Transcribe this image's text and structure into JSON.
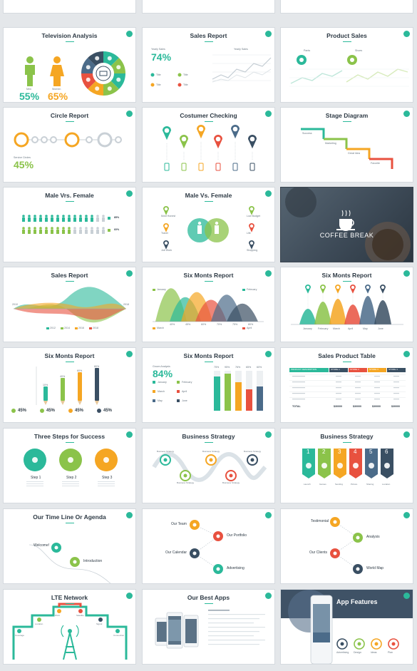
{
  "page": {
    "background": "#e4e7ea",
    "accent": "#2bb99a",
    "palette": [
      "#2bb99a",
      "#8bc34a",
      "#f5a623",
      "#e8513f",
      "#4b6b89",
      "#3a4f63"
    ]
  },
  "slides": [
    {
      "id": "top-partial-1",
      "title": ""
    },
    {
      "id": "top-partial-2",
      "title": ""
    },
    {
      "id": "top-partial-3",
      "title": ""
    },
    {
      "id": "television-analysis",
      "title": "Television Analysis",
      "labels": {
        "men": "Men",
        "women": "Women",
        "men_pct": "55%",
        "women_pct": "65%"
      }
    },
    {
      "id": "sales-report-1",
      "title": "Sales Report",
      "labels": {
        "kpi_label": "Yearly Sales",
        "kpi": "74%",
        "chart_title": "Yearly Sales",
        "items": [
          "Title",
          "Title",
          "Title",
          "Title"
        ]
      }
    },
    {
      "id": "product-sales",
      "title": "Product Sales",
      "labels": {
        "series_a": "Pants",
        "series_b": "Shoes"
      }
    },
    {
      "id": "circle-report",
      "title": "Circle Report",
      "labels": {
        "kpi_label": "Service Circles",
        "kpi": "45%"
      }
    },
    {
      "id": "costumer-checking",
      "title": "Costumer Checking"
    },
    {
      "id": "stage-diagram",
      "title": "Stage Diagram",
      "labels": {
        "stages": [
          "Success",
          "Marketing",
          "Great Idea",
          "Favorite"
        ]
      }
    },
    {
      "id": "male-vs-female-1",
      "title": "Male Vrs. Female",
      "labels": {
        "pct_1": "85%",
        "pct_2": "60%"
      }
    },
    {
      "id": "male-vs-female-2",
      "title": "Male Vs. Female",
      "labels": {
        "left": [
          "Most Honest",
          "Travel",
          "Job Work"
        ],
        "right": [
          "Low Budget",
          "Life",
          "Shopping"
        ]
      }
    },
    {
      "id": "coffee-break",
      "title": "COFFEE BREAK"
    },
    {
      "id": "sales-report-2",
      "title": "Sales Report",
      "labels": {
        "legend": [
          "2012",
          "2014",
          "2016",
          "2018"
        ],
        "left_year": "2010",
        "right_year": "2018"
      }
    },
    {
      "id": "six-monts-report-1",
      "title": "Six Monts Report",
      "labels": {
        "months": [
          "January",
          "February",
          "March",
          "April"
        ],
        "pcts": [
          "40%",
          "45%",
          "60%",
          "70%",
          "75%",
          "80%"
        ]
      }
    },
    {
      "id": "six-monts-report-2",
      "title": "Six Monts Report",
      "labels": {
        "months": [
          "January",
          "February",
          "March",
          "April",
          "May",
          "June"
        ]
      }
    },
    {
      "id": "six-monts-report-3",
      "title": "Six Monts Report",
      "labels": {
        "pcts": [
          "45%",
          "45%",
          "45%",
          "45%"
        ],
        "bar_pcts": [
          "10%",
          "40%",
          "60%",
          "80%"
        ]
      }
    },
    {
      "id": "six-monts-report-4",
      "title": "Six Monts Report",
      "labels": {
        "kpi_label": "Grown Analysis",
        "kpi": "84%",
        "months": [
          "January",
          "February",
          "March",
          "April",
          "May",
          "June"
        ],
        "bar_pcts": [
          "75%",
          "95%",
          "76%",
          "65%",
          "60%"
        ]
      }
    },
    {
      "id": "sales-product-table",
      "title": "Sales Product Table",
      "labels": {
        "head": [
          "PRODUCT DESCRIPTION",
          "STORE 1",
          "STORE 2",
          "STORE 3",
          "STORE 4"
        ],
        "total": "TOTAL",
        "totals": [
          "$30000",
          "$30000",
          "$30000",
          "$30000"
        ]
      }
    },
    {
      "id": "three-steps",
      "title": "Three Steps for Success",
      "labels": {
        "steps": [
          "Step 1",
          "Step 2",
          "Step 3"
        ]
      }
    },
    {
      "id": "business-strategy-1",
      "title": "Business Strategy",
      "labels": {
        "item": "Business Strategy"
      }
    },
    {
      "id": "business-strategy-2",
      "title": "Business Strategy",
      "labels": {
        "nums": [
          "1",
          "2",
          "3",
          "4",
          "5",
          "6"
        ],
        "items": [
          "Launch",
          "Games",
          "Sending",
          "Picture",
          "Sharing",
          "Location"
        ]
      }
    },
    {
      "id": "timeline",
      "title": "Our Time Line Or Agenda",
      "labels": {
        "items": [
          "Welcome!",
          "Introduction"
        ]
      }
    },
    {
      "id": "our-team",
      "title": "",
      "labels": {
        "items": [
          "Our Team",
          "Our Portfolio",
          "Our Calendar",
          "Advertising"
        ]
      }
    },
    {
      "id": "testimonial",
      "title": "",
      "labels": {
        "items": [
          "Testimonial",
          "Analysis",
          "Our Clients",
          "World Map"
        ]
      }
    },
    {
      "id": "lte-network",
      "title": "LTE Network",
      "labels": {
        "items": [
          "Coverage",
          "Location",
          "Wi-Fi",
          "Satellite",
          "Signal",
          "Connection"
        ]
      }
    },
    {
      "id": "best-apps",
      "title": "Our Best Apps"
    },
    {
      "id": "app-features",
      "title": "App Features",
      "labels": {
        "items": [
          "Advertising",
          "Design",
          "Ideas",
          "Plan"
        ]
      }
    }
  ]
}
